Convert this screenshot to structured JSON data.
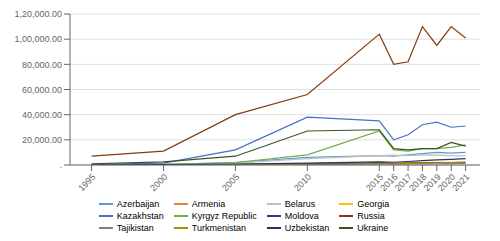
{
  "chart_data": {
    "type": "line",
    "x": [
      1995,
      2000,
      2005,
      2010,
      2015,
      2016,
      2017,
      2018,
      2019,
      2020,
      2021
    ],
    "xlim": [
      1993.5,
      2022
    ],
    "xticks": [
      1995,
      2000,
      2005,
      2010,
      2015,
      2016,
      2017,
      2018,
      2019,
      2020,
      2021
    ],
    "ylim": [
      0,
      120000
    ],
    "yticks": [
      {
        "value": 0,
        "label": " ."
      },
      {
        "value": 20000,
        "label": "20,000.00"
      },
      {
        "value": 40000,
        "label": "40,000.00"
      },
      {
        "value": 60000,
        "label": "60,000.00"
      },
      {
        "value": 80000,
        "label": "80,000.00"
      },
      {
        "value": 100000,
        "label": "1,00,000.00"
      },
      {
        "value": 120000,
        "label": "1,20,000.00"
      }
    ],
    "grid": "y",
    "legend": "bottom",
    "series": [
      {
        "name": "Azerbaijan",
        "color": "#5B9BD5",
        "values": [
          200,
          500,
          2000,
          6000,
          7500,
          7000,
          8000,
          9000,
          10000,
          9500,
          10000
        ]
      },
      {
        "name": "Armenia",
        "color": "#ED7D31",
        "values": [
          300,
          500,
          800,
          1200,
          1800,
          1500,
          1800,
          2000,
          2000,
          1800,
          1800
        ]
      },
      {
        "name": "Belarus",
        "color": "#BFBFBF",
        "values": [
          300,
          500,
          1500,
          5000,
          7500,
          7800,
          7500,
          8000,
          7800,
          7500,
          7200
        ]
      },
      {
        "name": "Georgia",
        "color": "#FFC000",
        "values": [
          100,
          200,
          400,
          1000,
          1500,
          1500,
          1800,
          2000,
          2200,
          2200,
          2200
        ]
      },
      {
        "name": "Kazakhstan",
        "color": "#4472C4",
        "values": [
          500,
          1500,
          12000,
          38000,
          35000,
          20000,
          24000,
          32000,
          34000,
          30000,
          31000
        ]
      },
      {
        "name": "Kyrgyz Republic",
        "color": "#70AD47",
        "values": [
          100,
          200,
          2000,
          8000,
          27000,
          12000,
          11000,
          13000,
          13000,
          14000,
          16000
        ]
      },
      {
        "name": "Moldova",
        "color": "#264478",
        "values": [
          100,
          200,
          300,
          800,
          1500,
          1200,
          1500,
          1800,
          2000,
          2000,
          2200
        ]
      },
      {
        "name": "Russia",
        "color": "#843C0C",
        "values": [
          7000,
          11000,
          40000,
          56000,
          104000,
          80000,
          82000,
          110000,
          95000,
          110000,
          101000
        ]
      },
      {
        "name": "Tajikistan",
        "color": "#808080",
        "values": [
          100,
          100,
          200,
          300,
          800,
          700,
          800,
          900,
          1000,
          1100,
          1200
        ]
      },
      {
        "name": "Turkmenistan",
        "color": "#B8860B",
        "values": [
          100,
          100,
          300,
          600,
          1000,
          1000,
          1200,
          1500,
          1800,
          2000,
          2200
        ]
      },
      {
        "name": "Uzbekistan",
        "color": "#1F3864",
        "values": [
          200,
          400,
          800,
          1500,
          2500,
          2200,
          2800,
          3500,
          4000,
          4500,
          5000
        ]
      },
      {
        "name": "Ukraine",
        "color": "#375623",
        "values": [
          1000,
          2500,
          7000,
          27000,
          28000,
          13000,
          12000,
          13000,
          13000,
          18000,
          15000
        ]
      }
    ]
  }
}
